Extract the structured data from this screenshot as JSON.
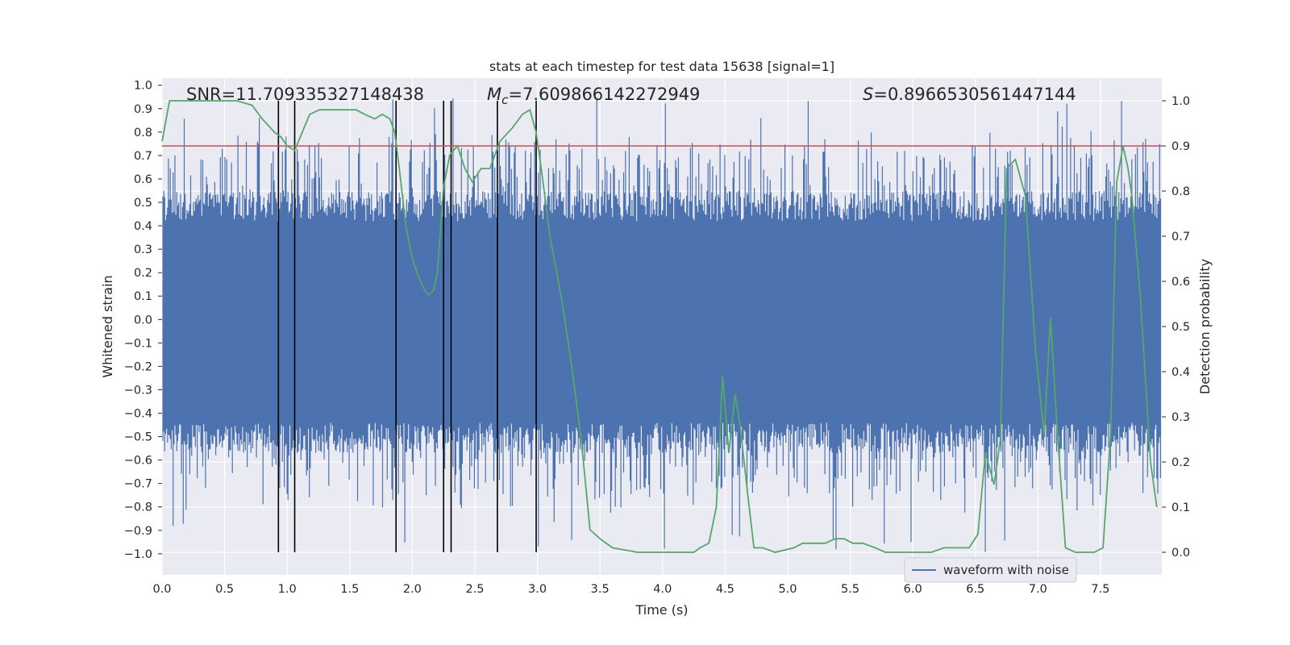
{
  "chart_data": {
    "type": "line",
    "title": "stats at each timestep for test data 15638 [signal=1]",
    "xlabel": "Time (s)",
    "ylabel": "Whitened strain",
    "y2label": "Detection probability",
    "xlim": [
      0,
      7.99
    ],
    "ylim": [
      -1.09,
      1.03
    ],
    "y2lim": [
      -0.05,
      1.05
    ],
    "x_ticks": [
      "0.0",
      "0.5",
      "1.0",
      "1.5",
      "2.0",
      "2.5",
      "3.0",
      "3.5",
      "4.0",
      "4.5",
      "5.0",
      "5.5",
      "6.0",
      "6.5",
      "7.0",
      "7.5"
    ],
    "y_ticks": [
      "1.0",
      "0.9",
      "0.8",
      "0.7",
      "0.6",
      "0.5",
      "0.4",
      "0.3",
      "0.2",
      "0.1",
      "0.0",
      "-0.1",
      "-0.2",
      "-0.3",
      "-0.4",
      "-0.5",
      "-0.6",
      "-0.7",
      "-0.8",
      "-0.9",
      "-1.0"
    ],
    "y2_ticks": [
      "1.0",
      "0.9",
      "0.8",
      "0.7",
      "0.6",
      "0.5",
      "0.4",
      "0.3",
      "0.2",
      "0.1",
      "0.0"
    ],
    "grid": true,
    "legend_position": "lower-right",
    "annotations": {
      "snr": "SNR=11.709335327148438",
      "mc_symbol": "M",
      "mc_sub": "c",
      "mc_value": "=7.609866142272949",
      "s_symbol": "S",
      "s_value": "=0.8966530561447144"
    },
    "threshold": 0.9,
    "threshold_color": "#c44e52",
    "vertical_lines_x": [
      0.93,
      1.06,
      1.87,
      2.25,
      2.31,
      2.68,
      2.99
    ],
    "series": [
      {
        "name": "waveform with noise",
        "color": "#4c72b0",
        "description_values": {
          "core_amplitude": 0.42,
          "peak_max": 0.95,
          "peak_min": -1.0
        }
      },
      {
        "name": "",
        "color": "#55a868",
        "axis": "right",
        "x": [
          0.0,
          0.06,
          0.2,
          0.4,
          0.6,
          0.72,
          0.8,
          0.9,
          0.95,
          1.0,
          1.06,
          1.12,
          1.18,
          1.26,
          1.35,
          1.45,
          1.55,
          1.62,
          1.7,
          1.76,
          1.82,
          1.86,
          1.9,
          1.95,
          2.0,
          2.05,
          2.1,
          2.13,
          2.17,
          2.2,
          2.25,
          2.3,
          2.36,
          2.42,
          2.48,
          2.55,
          2.62,
          2.7,
          2.8,
          2.88,
          2.94,
          2.99,
          3.04,
          3.1,
          3.2,
          3.28,
          3.35,
          3.42,
          3.5,
          3.6,
          3.8,
          4.0,
          4.15,
          4.25,
          4.3,
          4.37,
          4.43,
          4.48,
          4.53,
          4.58,
          4.62,
          4.68,
          4.73,
          4.8,
          4.9,
          5.05,
          5.12,
          5.18,
          5.24,
          5.3,
          5.38,
          5.45,
          5.52,
          5.6,
          5.7,
          5.78,
          5.88,
          6.0,
          6.15,
          6.25,
          6.35,
          6.45,
          6.52,
          6.58,
          6.65,
          6.7,
          6.75,
          6.82,
          6.9,
          6.98,
          7.05,
          7.1,
          7.15,
          7.22,
          7.3,
          7.38,
          7.45,
          7.52,
          7.58,
          7.63,
          7.68,
          7.72,
          7.75,
          7.82,
          7.9,
          7.95
        ],
        "y": [
          0.91,
          1.0,
          1.0,
          1.0,
          1.0,
          0.99,
          0.96,
          0.93,
          0.92,
          0.9,
          0.89,
          0.93,
          0.97,
          0.98,
          0.98,
          0.98,
          0.98,
          0.97,
          0.96,
          0.97,
          0.96,
          0.93,
          0.84,
          0.72,
          0.65,
          0.61,
          0.58,
          0.57,
          0.58,
          0.62,
          0.81,
          0.88,
          0.9,
          0.85,
          0.82,
          0.85,
          0.85,
          0.91,
          0.94,
          0.97,
          0.98,
          0.93,
          0.83,
          0.7,
          0.55,
          0.4,
          0.25,
          0.05,
          0.03,
          0.01,
          0.0,
          0.0,
          0.0,
          0.0,
          0.01,
          0.02,
          0.1,
          0.39,
          0.22,
          0.35,
          0.28,
          0.13,
          0.01,
          0.01,
          0.0,
          0.01,
          0.02,
          0.02,
          0.02,
          0.02,
          0.03,
          0.03,
          0.02,
          0.02,
          0.01,
          0.0,
          0.0,
          0.0,
          0.0,
          0.01,
          0.01,
          0.01,
          0.04,
          0.22,
          0.15,
          0.25,
          0.85,
          0.87,
          0.79,
          0.45,
          0.26,
          0.52,
          0.29,
          0.01,
          0.0,
          0.0,
          0.0,
          0.01,
          0.26,
          0.82,
          0.9,
          0.85,
          0.79,
          0.56,
          0.2,
          0.1
        ]
      }
    ]
  }
}
